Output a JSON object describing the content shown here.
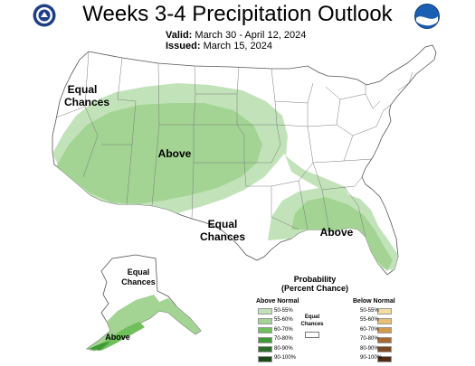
{
  "header": {
    "title": "Weeks 3-4 Precipitation Outlook",
    "valid_label": "Valid:",
    "valid_value": "March 30 - April 12, 2024",
    "issued_label": "Issued:",
    "issued_value": "March 15, 2024",
    "logo_left": "doc-seal-icon",
    "logo_right": "noaa-logo-icon"
  },
  "regions": {
    "west_label": [
      "Equal",
      "Chances"
    ],
    "central_above": "Above",
    "south_label": [
      "Equal",
      "Chances"
    ],
    "southeast_above": "Above",
    "alaska_label": [
      "Equal",
      "Chances"
    ],
    "alaska_above": "Above"
  },
  "legend": {
    "title": [
      "Probability",
      "(Percent Chance)"
    ],
    "above_heading": "Above Normal",
    "below_heading": "Below Normal",
    "equal_label": [
      "Equal",
      "Chances"
    ],
    "above": [
      {
        "label": "50-55%",
        "color": "#c2e3b9"
      },
      {
        "label": "55-60%",
        "color": "#a3d494"
      },
      {
        "label": "60-70%",
        "color": "#6fbf5a"
      },
      {
        "label": "70-80%",
        "color": "#3f9a36"
      },
      {
        "label": "80-90%",
        "color": "#2a6e2a"
      },
      {
        "label": "90-100%",
        "color": "#1a4a1a"
      }
    ],
    "below": [
      {
        "label": "50-55%",
        "color": "#f3dca0"
      },
      {
        "label": "55-60%",
        "color": "#e9bf74"
      },
      {
        "label": "60-70%",
        "color": "#d19a4e"
      },
      {
        "label": "70-80%",
        "color": "#a86a32"
      },
      {
        "label": "80-90%",
        "color": "#7d4a24"
      },
      {
        "label": "90-100%",
        "color": "#4f2c16"
      }
    ]
  }
}
